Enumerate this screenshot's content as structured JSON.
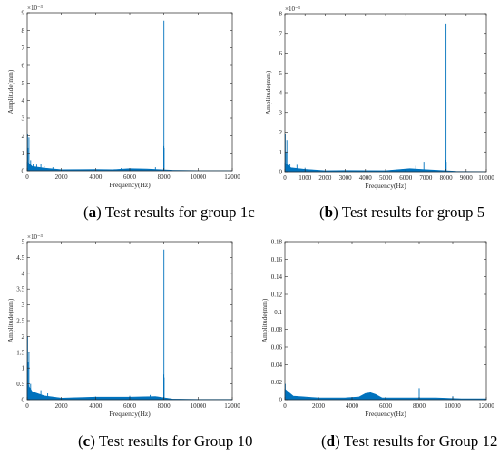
{
  "chart_data": [
    {
      "type": "line",
      "panel": "a",
      "caption_letter": "a",
      "caption_text": " Test results for group 1c",
      "xlabel": "Frequency(Hz)",
      "ylabel": "Amplitude(mm)",
      "exponent_label": "×10⁻³",
      "xlim": [
        0,
        12000
      ],
      "ylim": [
        0,
        9
      ],
      "xticks": [
        0,
        2000,
        4000,
        6000,
        8000,
        10000,
        12000
      ],
      "yticks": [
        0,
        1,
        2,
        3,
        4,
        5,
        6,
        7,
        8,
        9
      ],
      "color": "#0072BD",
      "spikes": [
        [
          20,
          2.1
        ],
        [
          40,
          1.3
        ],
        [
          100,
          1.9
        ],
        [
          200,
          0.6
        ],
        [
          350,
          0.4
        ],
        [
          550,
          0.35
        ],
        [
          800,
          0.4
        ],
        [
          1000,
          0.25
        ],
        [
          1500,
          0.2
        ],
        [
          5500,
          0.15
        ],
        [
          6200,
          0.12
        ],
        [
          7500,
          0.2
        ],
        [
          7990,
          1.4
        ],
        [
          8000,
          8.55
        ],
        [
          8010,
          1.3
        ]
      ],
      "baseline": [
        [
          0,
          0.5
        ],
        [
          300,
          0.25
        ],
        [
          1000,
          0.15
        ],
        [
          2000,
          0.06
        ],
        [
          4000,
          0.08
        ],
        [
          5000,
          0.06
        ],
        [
          6000,
          0.12
        ],
        [
          7000,
          0.1
        ],
        [
          8500,
          0.03
        ],
        [
          10000,
          0.01
        ],
        [
          12000,
          0.01
        ]
      ]
    },
    {
      "type": "line",
      "panel": "b",
      "caption_letter": "b",
      "caption_text": " Test results for group 5",
      "xlabel": "Frequency(Hz)",
      "ylabel": "Amplitude(mm)",
      "exponent_label": "×10⁻³",
      "xlim": [
        0,
        10000
      ],
      "ylim": [
        0,
        8
      ],
      "xticks": [
        0,
        1000,
        2000,
        3000,
        4000,
        5000,
        6000,
        7000,
        8000,
        9000,
        10000
      ],
      "yticks": [
        0,
        1,
        2,
        3,
        4,
        5,
        6,
        7,
        8
      ],
      "color": "#0072BD",
      "spikes": [
        [
          20,
          1.9
        ],
        [
          50,
          1.0
        ],
        [
          100,
          1.6
        ],
        [
          250,
          0.4
        ],
        [
          600,
          0.35
        ],
        [
          1000,
          0.2
        ],
        [
          6500,
          0.3
        ],
        [
          6900,
          0.5
        ],
        [
          7990,
          0.6
        ],
        [
          8000,
          7.5
        ],
        [
          8010,
          0.5
        ]
      ],
      "baseline": [
        [
          0,
          0.45
        ],
        [
          300,
          0.2
        ],
        [
          1000,
          0.12
        ],
        [
          2000,
          0.05
        ],
        [
          3000,
          0.06
        ],
        [
          5000,
          0.05
        ],
        [
          6200,
          0.15
        ],
        [
          7000,
          0.1
        ],
        [
          8500,
          0.02
        ],
        [
          10000,
          0.01
        ]
      ]
    },
    {
      "type": "line",
      "panel": "c",
      "caption_letter": "c",
      "caption_text": " Test results for Group 10",
      "xlabel": "Frequency(Hz)",
      "ylabel": "Amplitude(mm)",
      "exponent_label": "×10⁻³",
      "xlim": [
        0,
        12000
      ],
      "ylim": [
        0,
        5
      ],
      "xticks": [
        0,
        2000,
        4000,
        6000,
        8000,
        10000,
        12000
      ],
      "yticks": [
        0,
        0.5,
        1,
        1.5,
        2,
        2.5,
        3,
        3.5,
        4,
        4.5,
        5
      ],
      "ytick_labels": [
        "0",
        "0.5",
        "1",
        "1.5",
        "2",
        "2.5",
        "3",
        "3.5",
        "4",
        "4.5",
        "5"
      ],
      "color": "#0072BD",
      "spikes": [
        [
          20,
          2.0
        ],
        [
          50,
          1.2
        ],
        [
          100,
          1.5
        ],
        [
          200,
          0.5
        ],
        [
          400,
          0.4
        ],
        [
          800,
          0.3
        ],
        [
          1200,
          0.2
        ],
        [
          4000,
          0.1
        ],
        [
          6000,
          0.12
        ],
        [
          7200,
          0.15
        ],
        [
          7990,
          0.8
        ],
        [
          8000,
          4.75
        ],
        [
          8010,
          0.7
        ]
      ],
      "baseline": [
        [
          0,
          0.5
        ],
        [
          300,
          0.25
        ],
        [
          1000,
          0.12
        ],
        [
          2000,
          0.05
        ],
        [
          4000,
          0.08
        ],
        [
          6000,
          0.08
        ],
        [
          7500,
          0.1
        ],
        [
          8500,
          0.02
        ],
        [
          10000,
          0.01
        ],
        [
          12000,
          0.01
        ]
      ]
    },
    {
      "type": "line",
      "panel": "d",
      "caption_letter": "d",
      "caption_text": " Test results for Group 12",
      "xlabel": "Frequency(Hz)",
      "ylabel": "Amplitude(mm)",
      "exponent_label": "",
      "xlim": [
        0,
        12000
      ],
      "ylim": [
        0,
        0.18
      ],
      "xticks": [
        0,
        2000,
        4000,
        6000,
        8000,
        10000,
        12000
      ],
      "yticks": [
        0,
        0.02,
        0.04,
        0.06,
        0.08,
        0.1,
        0.12,
        0.14,
        0.16,
        0.18
      ],
      "ytick_labels": [
        "0",
        "0.02",
        "0.04",
        "0.06",
        "0.08",
        "0.1",
        "0.12",
        "0.14",
        "0.16",
        "0.18"
      ],
      "color": "#0072BD",
      "spikes": [
        [
          20,
          0.018
        ],
        [
          100,
          0.01
        ],
        [
          4900,
          0.009
        ],
        [
          5100,
          0.008
        ],
        [
          8000,
          0.013
        ],
        [
          10000,
          0.004
        ]
      ],
      "baseline": [
        [
          0,
          0.012
        ],
        [
          500,
          0.004
        ],
        [
          2000,
          0.002
        ],
        [
          3500,
          0.002
        ],
        [
          4400,
          0.003
        ],
        [
          4800,
          0.007
        ],
        [
          5100,
          0.008
        ],
        [
          5400,
          0.006
        ],
        [
          5800,
          0.002
        ],
        [
          7000,
          0.002
        ],
        [
          9000,
          0.002
        ],
        [
          10500,
          0.001
        ],
        [
          12000,
          0.001
        ]
      ]
    }
  ]
}
